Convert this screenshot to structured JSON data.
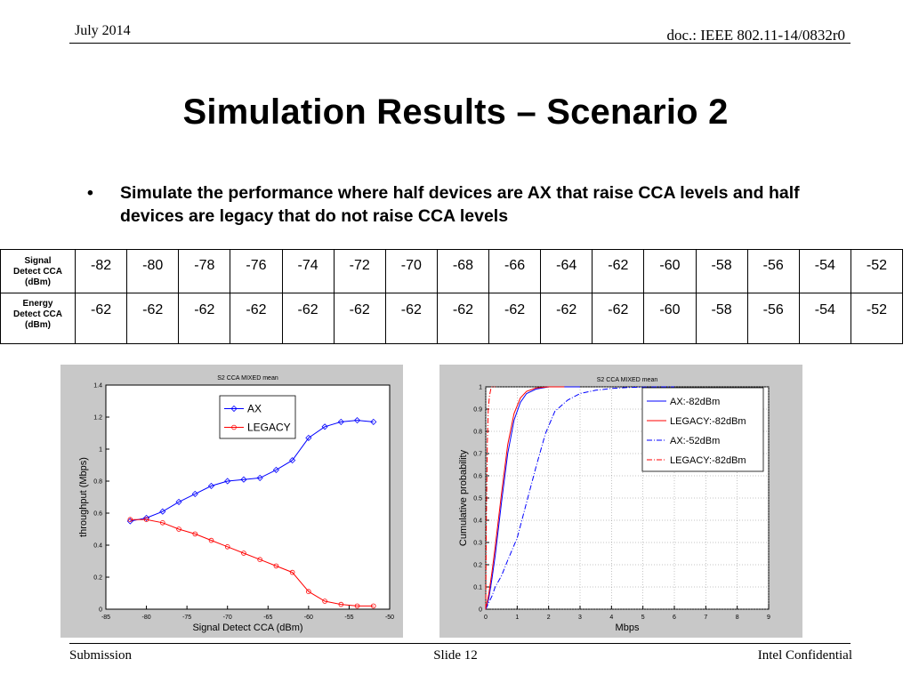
{
  "header": {
    "date": "July 2014",
    "doc": "doc.: IEEE 802.11-14/0832r0"
  },
  "title": "Simulation Results – Scenario 2",
  "bullet": {
    "symbol": "•",
    "text": "Simulate the performance where half devices are AX that raise CCA levels and half devices are legacy that do not raise CCA levels"
  },
  "table": {
    "rows": [
      {
        "label": "Signal\nDetect CCA\n(dBm)",
        "values": [
          "-82",
          "-80",
          "-78",
          "-76",
          "-74",
          "-72",
          "-70",
          "-68",
          "-66",
          "-64",
          "-62",
          "-60",
          "-58",
          "-56",
          "-54",
          "-52"
        ]
      },
      {
        "label": "Energy\nDetect CCA\n(dBm)",
        "values": [
          "-62",
          "-62",
          "-62",
          "-62",
          "-62",
          "-62",
          "-62",
          "-62",
          "-62",
          "-62",
          "-62",
          "-60",
          "-58",
          "-56",
          "-54",
          "-52"
        ]
      }
    ]
  },
  "chart_data": [
    {
      "type": "line",
      "title": "S2 CCA MIXED mean",
      "xlabel": "Signal Detect CCA (dBm)",
      "ylabel": "throughput (Mbps)",
      "xlim": [
        -85,
        -50
      ],
      "ylim": [
        0,
        1.4
      ],
      "xticks": [
        -85,
        -80,
        -75,
        -70,
        -65,
        -60,
        -55,
        -50
      ],
      "yticks": [
        0,
        0.2,
        0.4,
        0.6,
        0.8,
        1,
        1.2,
        1.4
      ],
      "grid": false,
      "legend_position": "top-right",
      "x": [
        -82,
        -80,
        -78,
        -76,
        -74,
        -72,
        -70,
        -68,
        -66,
        -64,
        -62,
        -60,
        -58,
        -56,
        -54,
        -52
      ],
      "series": [
        {
          "name": "AX",
          "color": "#0000ff",
          "marker": "diamond",
          "values": [
            0.55,
            0.57,
            0.61,
            0.67,
            0.72,
            0.77,
            0.8,
            0.81,
            0.82,
            0.87,
            0.93,
            1.07,
            1.14,
            1.17,
            1.18,
            1.17
          ]
        },
        {
          "name": "LEGACY",
          "color": "#ff0000",
          "marker": "circle",
          "values": [
            0.56,
            0.56,
            0.54,
            0.5,
            0.47,
            0.43,
            0.39,
            0.35,
            0.31,
            0.27,
            0.23,
            0.11,
            0.05,
            0.03,
            0.02,
            0.02
          ]
        }
      ]
    },
    {
      "type": "line",
      "title": "S2 CCA MIXED mean",
      "xlabel": "Mbps",
      "ylabel": "Cumulative probability",
      "xlim": [
        0,
        9
      ],
      "ylim": [
        0,
        1
      ],
      "xticks": [
        0,
        1,
        2,
        3,
        4,
        5,
        6,
        7,
        8,
        9
      ],
      "yticks": [
        0,
        0.1,
        0.2,
        0.3,
        0.4,
        0.5,
        0.6,
        0.7,
        0.8,
        0.9,
        1
      ],
      "grid": true,
      "legend_position": "top-right",
      "series": [
        {
          "name": "AX:-82dBm",
          "color": "#0000ff",
          "dash": "solid",
          "x": [
            0,
            0.1,
            0.2,
            0.3,
            0.5,
            0.7,
            0.9,
            1.1,
            1.3,
            1.6,
            2.0,
            2.5,
            3.0
          ],
          "y": [
            0,
            0.05,
            0.14,
            0.24,
            0.48,
            0.7,
            0.85,
            0.93,
            0.97,
            0.99,
            1.0,
            1.0,
            1.0
          ]
        },
        {
          "name": "LEGACY:-82dBm",
          "color": "#ff0000",
          "dash": "solid",
          "x": [
            0,
            0.1,
            0.2,
            0.3,
            0.5,
            0.7,
            0.9,
            1.1,
            1.3,
            1.6,
            2.0,
            2.5
          ],
          "y": [
            0,
            0.07,
            0.17,
            0.28,
            0.52,
            0.74,
            0.88,
            0.95,
            0.98,
            0.995,
            1.0,
            1.0
          ]
        },
        {
          "name": "AX:-52dBm",
          "color": "#0000ff",
          "dash": "dashdot",
          "x": [
            0,
            0.1,
            0.2,
            0.3,
            0.5,
            0.7,
            1.0,
            1.3,
            1.6,
            1.9,
            2.2,
            2.6,
            3.0,
            3.5,
            4.0,
            4.5,
            5.0,
            5.5,
            6.0
          ],
          "y": [
            0,
            0.03,
            0.06,
            0.1,
            0.15,
            0.22,
            0.32,
            0.48,
            0.64,
            0.79,
            0.89,
            0.94,
            0.97,
            0.985,
            0.993,
            0.997,
            0.999,
            1.0,
            1.0
          ]
        },
        {
          "name": "LEGACY:-82dBm",
          "color": "#ff0000",
          "dash": "dashdot",
          "x": [
            0,
            0.02,
            0.05,
            0.08,
            0.12,
            0.16,
            0.2,
            0.3
          ],
          "y": [
            0,
            0.4,
            0.75,
            0.9,
            0.96,
            0.99,
            1.0,
            1.0
          ]
        }
      ]
    }
  ],
  "footer": {
    "left": "Submission",
    "center": "Slide 12",
    "right": "Intel Confidential"
  }
}
